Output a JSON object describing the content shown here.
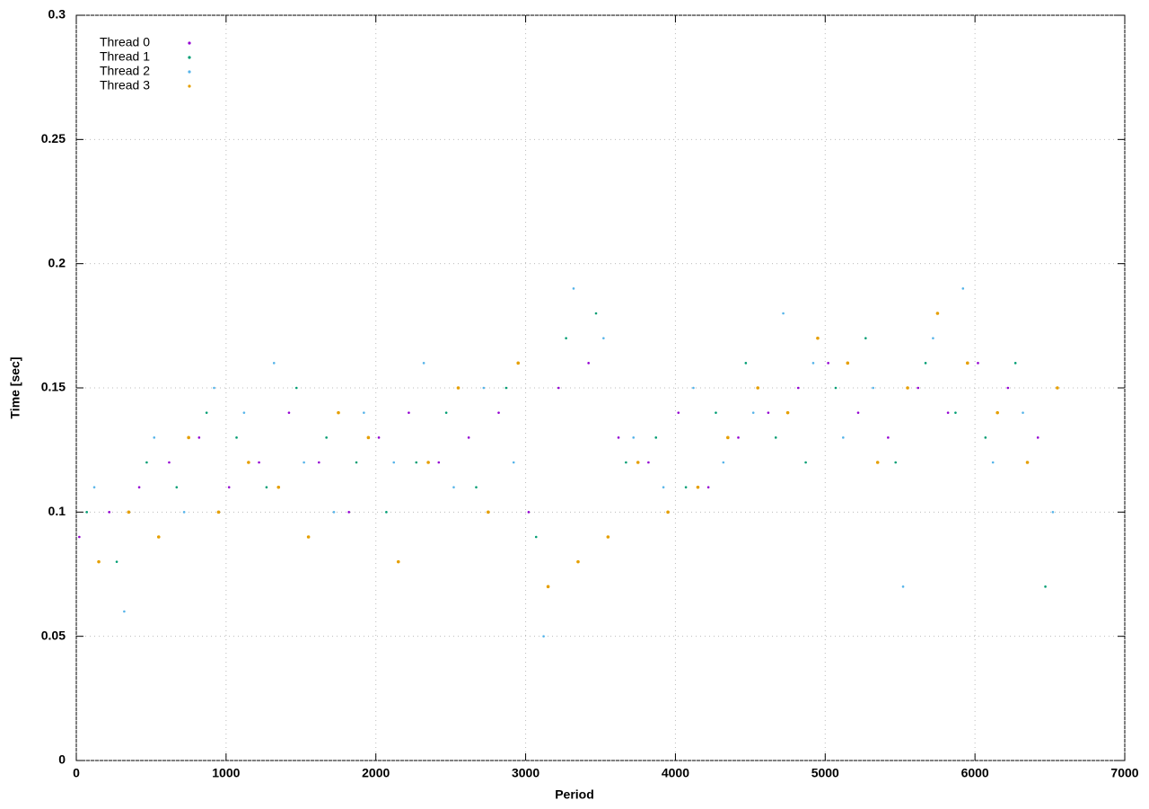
{
  "chart_data": {
    "type": "scatter",
    "xlabel": "Period",
    "ylabel": "Time [sec]",
    "xlim": [
      0,
      7000
    ],
    "xticks": [
      0,
      1000,
      2000,
      3000,
      4000,
      5000,
      6000,
      7000
    ],
    "ylim": [
      0,
      0.3
    ],
    "yticks": [
      0,
      0.05,
      0.1,
      0.15,
      0.2,
      0.25,
      0.3
    ],
    "grid": true,
    "legend": "top-left",
    "series": [
      {
        "name": "Thread 0",
        "color": "#9400d3",
        "x": [
          20,
          220,
          420,
          620,
          820,
          1020,
          1220,
          1420,
          1620,
          1820,
          2020,
          2220,
          2420,
          2620,
          2820,
          3020,
          3220,
          3420,
          3620,
          3820,
          4020,
          4220,
          4420,
          4620,
          4820,
          5020,
          5220,
          5420,
          5620,
          5820,
          6020,
          6220,
          6420
        ],
        "values": [
          0.09,
          0.1,
          0.11,
          0.12,
          0.13,
          0.11,
          0.12,
          0.14,
          0.12,
          0.1,
          0.13,
          0.14,
          0.12,
          0.13,
          0.14,
          0.1,
          0.15,
          0.16,
          0.13,
          0.12,
          0.14,
          0.11,
          0.13,
          0.14,
          0.15,
          0.16,
          0.14,
          0.13,
          0.15,
          0.14,
          0.16,
          0.15,
          0.13
        ]
      },
      {
        "name": "Thread 1",
        "color": "#009e73",
        "x": [
          70,
          270,
          470,
          670,
          870,
          1070,
          1270,
          1470,
          1670,
          1870,
          2070,
          2270,
          2470,
          2670,
          2870,
          3070,
          3270,
          3470,
          3670,
          3870,
          4070,
          4270,
          4470,
          4670,
          4870,
          5070,
          5270,
          5470,
          5670,
          5870,
          6070,
          6270,
          6470
        ],
        "values": [
          0.1,
          0.08,
          0.12,
          0.11,
          0.14,
          0.13,
          0.11,
          0.15,
          0.13,
          0.12,
          0.1,
          0.12,
          0.14,
          0.11,
          0.15,
          0.09,
          0.17,
          0.18,
          0.12,
          0.13,
          0.11,
          0.14,
          0.16,
          0.13,
          0.12,
          0.15,
          0.17,
          0.12,
          0.16,
          0.14,
          0.13,
          0.16,
          0.07
        ]
      },
      {
        "name": "Thread 2",
        "color": "#56b4e9",
        "x": [
          120,
          320,
          520,
          720,
          920,
          1120,
          1320,
          1520,
          1720,
          1920,
          2120,
          2320,
          2520,
          2720,
          2920,
          3120,
          3320,
          3520,
          3720,
          3920,
          4120,
          4320,
          4520,
          4720,
          4920,
          5120,
          5320,
          5520,
          5720,
          5920,
          6120,
          6320,
          6520
        ],
        "values": [
          0.11,
          0.06,
          0.13,
          0.1,
          0.15,
          0.14,
          0.16,
          0.12,
          0.1,
          0.14,
          0.12,
          0.16,
          0.11,
          0.15,
          0.12,
          0.05,
          0.19,
          0.17,
          0.13,
          0.11,
          0.15,
          0.12,
          0.14,
          0.18,
          0.16,
          0.13,
          0.15,
          0.07,
          0.17,
          0.19,
          0.12,
          0.14,
          0.1
        ]
      },
      {
        "name": "Thread 3",
        "color": "#e69f00",
        "x": [
          150,
          350,
          550,
          750,
          950,
          1150,
          1350,
          1550,
          1750,
          1950,
          2150,
          2350,
          2550,
          2750,
          2950,
          3150,
          3350,
          3550,
          3750,
          3950,
          4150,
          4350,
          4550,
          4750,
          4950,
          5150,
          5350,
          5550,
          5750,
          5950,
          6150,
          6350,
          6550
        ],
        "values": [
          0.08,
          0.1,
          0.09,
          0.13,
          0.1,
          0.12,
          0.11,
          0.09,
          0.14,
          0.13,
          0.08,
          0.12,
          0.15,
          0.1,
          0.16,
          0.07,
          0.08,
          0.09,
          0.12,
          0.1,
          0.11,
          0.13,
          0.15,
          0.14,
          0.17,
          0.16,
          0.12,
          0.15,
          0.18,
          0.16,
          0.14,
          0.12,
          0.15
        ]
      }
    ]
  }
}
